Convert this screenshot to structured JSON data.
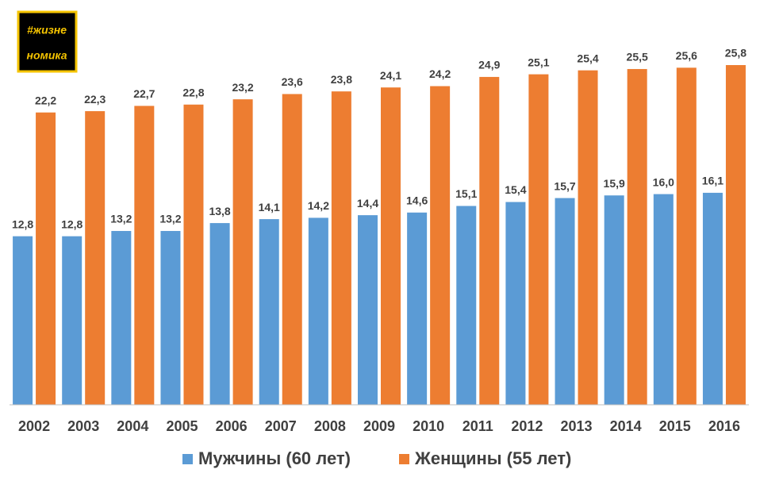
{
  "logo": [
    "#жизне",
    "номика"
  ],
  "chart_data": {
    "type": "bar",
    "categories": [
      "2002",
      "2003",
      "2004",
      "2005",
      "2006",
      "2007",
      "2008",
      "2009",
      "2010",
      "2011",
      "2012",
      "2013",
      "2014",
      "2015",
      "2016"
    ],
    "series": [
      {
        "name": "Мужчины (60 лет)",
        "color": "#5b9bd5",
        "values": [
          12.8,
          12.8,
          13.2,
          13.2,
          13.8,
          14.1,
          14.2,
          14.4,
          14.6,
          15.1,
          15.4,
          15.7,
          15.9,
          16.0,
          16.1
        ],
        "value_labels": [
          "12,8",
          "12,8",
          "13,2",
          "13,2",
          "13,8",
          "14,1",
          "14,2",
          "14,4",
          "14,6",
          "15,1",
          "15,4",
          "15,7",
          "15,9",
          "16,0",
          "16,1"
        ]
      },
      {
        "name": "Женщины (55 лет)",
        "color": "#ed7d31",
        "values": [
          22.2,
          22.3,
          22.7,
          22.8,
          23.2,
          23.6,
          23.8,
          24.1,
          24.2,
          24.9,
          25.1,
          25.4,
          25.5,
          25.6,
          25.8
        ],
        "value_labels": [
          "22,2",
          "22,3",
          "22,7",
          "22,8",
          "23,2",
          "23,6",
          "23,8",
          "24,1",
          "24,2",
          "24,9",
          "25,1",
          "25,4",
          "25,5",
          "25,6",
          "25,8"
        ]
      }
    ],
    "ylim": [
      0,
      28
    ],
    "legend": "bottom"
  }
}
